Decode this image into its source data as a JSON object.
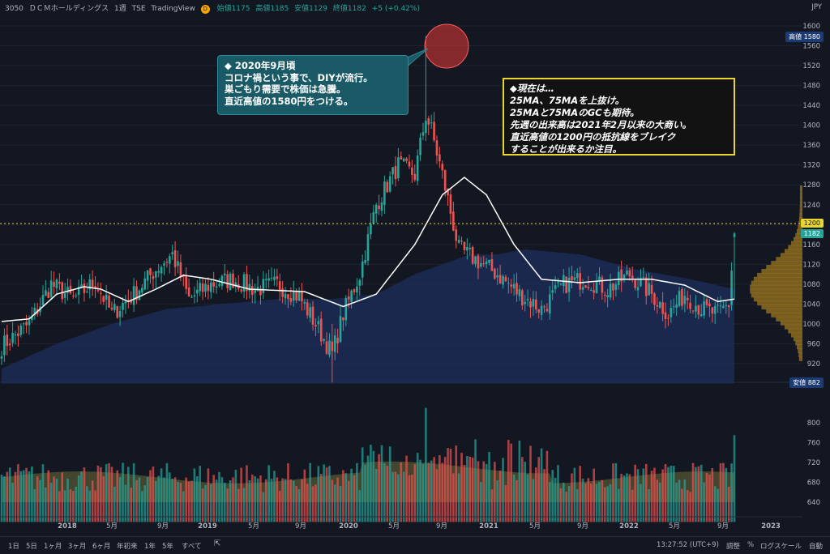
{
  "header": {
    "symbol": "3050",
    "name": "ＤＣＭホールディングス",
    "interval": "1週",
    "exchange": "TSE",
    "source": "TradingView",
    "badge": "D",
    "open": "始値1175",
    "high": "高値1185",
    "low": "安値1129",
    "close": "終値1182",
    "change": "+5 (+0.42%)",
    "currency": "JPY"
  },
  "price_tags": {
    "high_label": "高値",
    "high_value": "1580",
    "level_value": "1200",
    "current_value": "1182",
    "low_label": "安値",
    "low_value": "882"
  },
  "annotation_1": {
    "lines": [
      "◆ 2020年9月頃",
      "コロナ禍という事で、DIYが流行。",
      "巣ごもり需要で株価は急騰。",
      "直近高値の1580円をつける。"
    ]
  },
  "annotation_2": {
    "lines": [
      "◆現在は…",
      "25MA、75MAを上抜け。",
      "25MAと75MAのGCも期待。",
      "先週の出来高は2021年2月以来の大商い。",
      "直近高値の1200円の抵抗線をブレイク",
      "することが出来るか注目。"
    ]
  },
  "toolbar": {
    "ranges": [
      "1日",
      "5日",
      "1ヶ月",
      "3ヶ月",
      "6ヶ月",
      "年初来",
      "1年",
      "5年",
      "すべて"
    ],
    "time": "13:27:52 (UTC+9)",
    "adjust": "調整",
    "percent": "%",
    "log": "ログスケール",
    "auto": "自動"
  },
  "colors": {
    "background": "#131722",
    "up": "#26a69a",
    "down": "#ef5350",
    "ma25": "#ffffff",
    "ma75_fill": "#1e2f5e",
    "volume_ma_fill": "#6b6b3a",
    "annotation_1_bg": "#1a5a66",
    "annotation_2_border": "#e8d62e",
    "resistance": "#e8d62e"
  },
  "chart_data": {
    "type": "candlestick",
    "interval": "1週",
    "price_axis_ticks": [
      1600,
      1560,
      1520,
      1480,
      1440,
      1400,
      1360,
      1320,
      1280,
      1240,
      1200,
      1160,
      1120,
      1080,
      1040,
      1000,
      960,
      920
    ],
    "volume_axis_ticks": [
      800,
      760,
      720,
      680,
      640
    ],
    "time_axis_labels": [
      "2018",
      "5月",
      "9月",
      "2019",
      "5月",
      "9月",
      "2020",
      "5月",
      "9月",
      "2021",
      "5月",
      "9月",
      "2022",
      "5月",
      "9月",
      "2023"
    ],
    "ylim": [
      880,
      1610
    ],
    "resistance_level": 1200,
    "all_time_high": 1580,
    "low": 882,
    "ohlc_last": {
      "open": 1175,
      "high": 1185,
      "low": 1129,
      "close": 1182
    },
    "close_series": {
      "start": "2017-07",
      "interval": "weekly",
      "anchors": [
        [
          0,
          955
        ],
        [
          10,
          1000
        ],
        [
          18,
          1080
        ],
        [
          26,
          1050
        ],
        [
          34,
          1085
        ],
        [
          40,
          1020
        ],
        [
          48,
          1060
        ],
        [
          56,
          1110
        ],
        [
          62,
          1140
        ],
        [
          68,
          1050
        ],
        [
          76,
          1080
        ],
        [
          84,
          1090
        ],
        [
          92,
          1070
        ],
        [
          100,
          1080
        ],
        [
          108,
          1055
        ],
        [
          114,
          1000
        ],
        [
          120,
          940
        ],
        [
          124,
          1020
        ],
        [
          130,
          1100
        ],
        [
          136,
          1240
        ],
        [
          144,
          1320
        ],
        [
          150,
          1300
        ],
        [
          154,
          1420
        ],
        [
          156,
          1390
        ],
        [
          160,
          1300
        ],
        [
          166,
          1150
        ],
        [
          172,
          1130
        ],
        [
          180,
          1100
        ],
        [
          188,
          1060
        ],
        [
          196,
          1030
        ],
        [
          204,
          1080
        ],
        [
          212,
          1090
        ],
        [
          220,
          1070
        ],
        [
          228,
          1100
        ],
        [
          236,
          1060
        ],
        [
          242,
          1020
        ],
        [
          248,
          1060
        ],
        [
          254,
          1030
        ],
        [
          260,
          1020
        ],
        [
          264,
          1040
        ],
        [
          266,
          1182
        ]
      ]
    },
    "ma25_anchors": [
      [
        0,
        1005
      ],
      [
        10,
        1010
      ],
      [
        20,
        1060
      ],
      [
        30,
        1075
      ],
      [
        36,
        1070
      ],
      [
        46,
        1045
      ],
      [
        56,
        1070
      ],
      [
        66,
        1098
      ],
      [
        76,
        1090
      ],
      [
        90,
        1070
      ],
      [
        110,
        1065
      ],
      [
        124,
        1035
      ],
      [
        136,
        1060
      ],
      [
        150,
        1160
      ],
      [
        160,
        1260
      ],
      [
        168,
        1295
      ],
      [
        176,
        1260
      ],
      [
        186,
        1160
      ],
      [
        196,
        1090
      ],
      [
        210,
        1083
      ],
      [
        224,
        1090
      ],
      [
        236,
        1090
      ],
      [
        248,
        1078
      ],
      [
        260,
        1045
      ],
      [
        266,
        1050
      ]
    ],
    "ma75_anchors": [
      [
        0,
        910
      ],
      [
        20,
        960
      ],
      [
        40,
        1000
      ],
      [
        60,
        1030
      ],
      [
        80,
        1040
      ],
      [
        100,
        1050
      ],
      [
        120,
        1050
      ],
      [
        136,
        1060
      ],
      [
        150,
        1100
      ],
      [
        170,
        1140
      ],
      [
        180,
        1140
      ],
      [
        190,
        1150
      ],
      [
        210,
        1140
      ],
      [
        230,
        1110
      ],
      [
        250,
        1090
      ],
      [
        266,
        1070
      ]
    ],
    "volume_profile_peak_price": 1070
  }
}
